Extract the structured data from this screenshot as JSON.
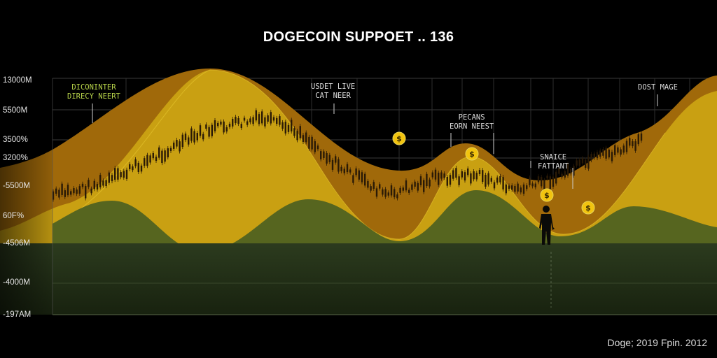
{
  "chart_data": {
    "type": "area",
    "title": "DOGECOIN SUPPOET .. 136",
    "y_tick_labels": [
      "13000M",
      "5500M",
      "3500%",
      "3200%",
      "-5500M",
      "60F%",
      "-4506M",
      "-4000M",
      "-197AM"
    ],
    "grid": true,
    "series_count": 4,
    "overlay": "candlestick",
    "annotations": [
      {
        "text": "DICONINTER\nDIRECY NEERT",
        "color": "#b8d44a"
      },
      {
        "text": "USDET LIVE\nCAT NEER",
        "color": "#e0e0e0"
      },
      {
        "text": "PECANS\nEORN NEEST",
        "color": "#e0e0e0"
      },
      {
        "text": "SNAICE\nFATTANT",
        "color": "#e0e0e0"
      },
      {
        "text": "DOST MAGE",
        "color": "#e0e0e0"
      }
    ],
    "markers": [
      "coin-icon",
      "coin-icon",
      "coin-icon",
      "coin-icon"
    ],
    "colors": {
      "band_orange": "#a0690a",
      "band_yellow": "#c9a012",
      "hills": "#56651f",
      "floor": "#27361c",
      "candles": "#2a1a06",
      "coin": "#f2c40f"
    }
  },
  "footer": "Doge; 2019 Fpin. 2012"
}
